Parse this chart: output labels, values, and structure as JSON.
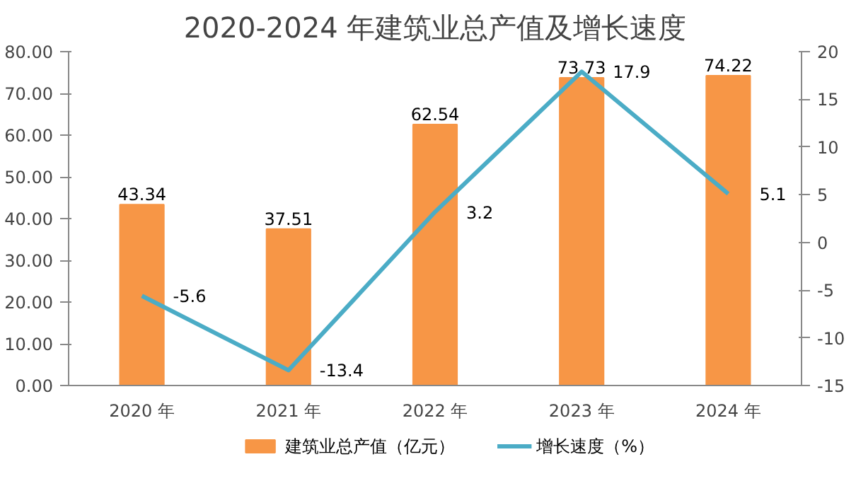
{
  "chart_data": {
    "type": "bar",
    "title": "2020-2024 年建筑业总产值及增长速度",
    "categories": [
      "2020 年",
      "2021 年",
      "2022 年",
      "2023 年",
      "2024 年"
    ],
    "series": [
      {
        "name": "建筑业总产值（亿元）",
        "color": "#f79646",
        "values": [
          43.34,
          37.51,
          62.54,
          73.73,
          74.22
        ]
      },
      {
        "name": "增长速度（%）",
        "type": "line",
        "axis": "y2",
        "color": "#4bacc6",
        "values": [
          -5.6,
          -13.4,
          3.2,
          17.9,
          5.1
        ]
      }
    ],
    "ylim": [
      0,
      80
    ],
    "yticks": [
      {
        "value": 0,
        "label": "0.00"
      },
      {
        "value": 10,
        "label": "10.00"
      },
      {
        "value": 20,
        "label": "20.00"
      },
      {
        "value": 30,
        "label": "30.00"
      },
      {
        "value": 40,
        "label": "40.00"
      },
      {
        "value": 50,
        "label": "50.00"
      },
      {
        "value": 60,
        "label": "60.00"
      },
      {
        "value": 70,
        "label": "70.00"
      },
      {
        "value": 80,
        "label": "80.00"
      }
    ],
    "y2lim": [
      -15,
      20
    ],
    "y2ticks": [
      -15,
      -10,
      -5,
      0,
      5,
      10,
      15,
      20
    ],
    "data_labels": true,
    "grid": false,
    "legend": "bottom",
    "marker": "none",
    "line_style": "solid"
  }
}
